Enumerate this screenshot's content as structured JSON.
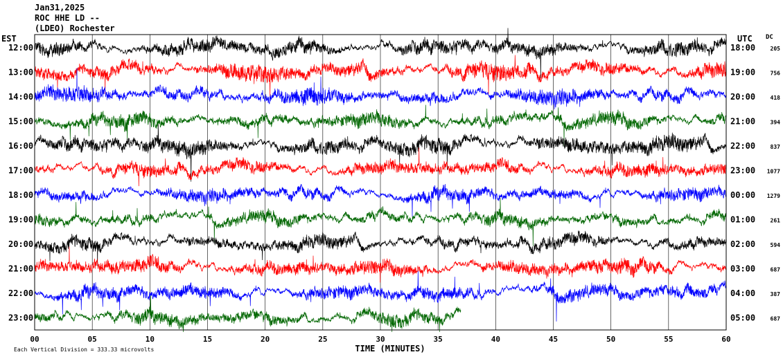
{
  "header": {
    "date": "Jan31,2025",
    "channel": "ROC HHE LD --",
    "station": "(LDEO) Rochester"
  },
  "chart_data": {
    "type": "line",
    "title": "Jan31,2025",
    "xlabel": "TIME (MINUTES)",
    "left_axis_label": "EST",
    "right_axis_label": "UTC",
    "dc_label": "DC",
    "footer_note": "Each Vertical Division = 333.33 microvolts",
    "xlim": [
      0,
      60
    ],
    "x_ticks": [
      "00",
      "05",
      "10",
      "15",
      "20",
      "25",
      "30",
      "35",
      "40",
      "45",
      "50",
      "55",
      "60"
    ],
    "colors": [
      "#000000",
      "#ff0000",
      "#0000ff",
      "#006600"
    ],
    "rows": [
      {
        "est": "12:00",
        "utc": "18:00",
        "dc": "205",
        "color": "#000000",
        "amplitude": 18,
        "end_minute": 60
      },
      {
        "est": "13:00",
        "utc": "19:00",
        "dc": "756",
        "color": "#ff0000",
        "amplitude": 20,
        "end_minute": 60
      },
      {
        "est": "14:00",
        "utc": "20:00",
        "dc": "418",
        "color": "#0000ff",
        "amplitude": 18,
        "end_minute": 60
      },
      {
        "est": "15:00",
        "utc": "21:00",
        "dc": "394",
        "color": "#006600",
        "amplitude": 16,
        "end_minute": 60
      },
      {
        "est": "16:00",
        "utc": "22:00",
        "dc": "837",
        "color": "#000000",
        "amplitude": 20,
        "end_minute": 60
      },
      {
        "est": "17:00",
        "utc": "23:00",
        "dc": "1077",
        "color": "#ff0000",
        "amplitude": 16,
        "end_minute": 60
      },
      {
        "est": "18:00",
        "utc": "00:00",
        "dc": "1279",
        "color": "#0000ff",
        "amplitude": 15,
        "end_minute": 60
      },
      {
        "est": "19:00",
        "utc": "01:00",
        "dc": "261",
        "color": "#006600",
        "amplitude": 14,
        "end_minute": 60
      },
      {
        "est": "20:00",
        "utc": "02:00",
        "dc": "594",
        "color": "#000000",
        "amplitude": 15,
        "end_minute": 60
      },
      {
        "est": "21:00",
        "utc": "03:00",
        "dc": "687",
        "color": "#ff0000",
        "amplitude": 18,
        "end_minute": 60
      },
      {
        "est": "22:00",
        "utc": "04:00",
        "dc": "387",
        "color": "#0000ff",
        "amplitude": 17,
        "end_minute": 60
      },
      {
        "est": "23:00",
        "utc": "05:00",
        "dc": "687",
        "color": "#006600",
        "amplitude": 16,
        "end_minute": 37
      }
    ]
  }
}
